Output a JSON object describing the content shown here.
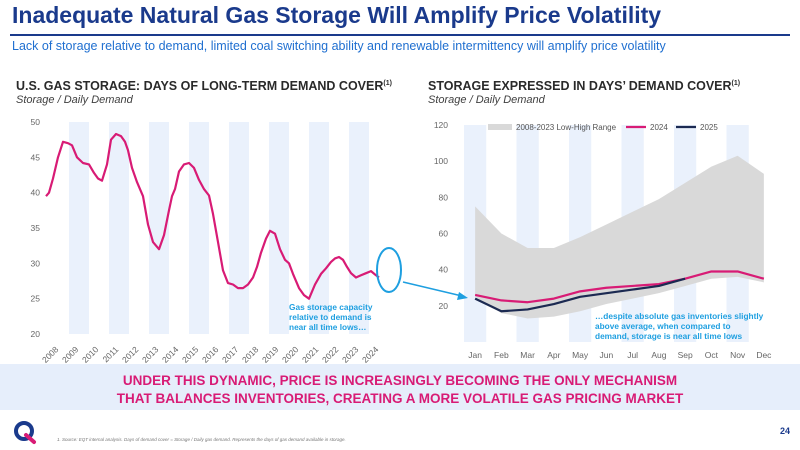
{
  "header": {
    "title": "Inadequate Natural Gas Storage Will Amplify Price Volatility",
    "subtitle": "Lack of storage relative to demand, limited coal switching ability and renewable intermittency will amplify price volatility"
  },
  "colors": {
    "brand_navy": "#1a3a8c",
    "accent_blue": "#1e9fe0",
    "magenta": "#d81b75",
    "band_gray": "#d9d9d9",
    "line_2025": "#1c2a52",
    "banner_bg": "#e6eefb"
  },
  "left_chart": {
    "title": "U.S. GAS STORAGE: DAYS OF LONG-TERM DEMAND COVER",
    "title_sup": "(1)",
    "subtitle": "Storage / Daily Demand",
    "callout": [
      "Gas storage capacity",
      "relative to demand is",
      "near all time lows…"
    ]
  },
  "right_chart": {
    "title": "STORAGE EXPRESSED IN DAYS’ DEMAND COVER",
    "title_sup": "(1)",
    "subtitle": "Storage / Daily Demand",
    "callout": [
      "…despite absolute gas inventories slightly",
      "above average, when compared to",
      "demand, storage is near all time lows"
    ]
  },
  "chart_data": [
    {
      "type": "line",
      "ylim": [
        20,
        50
      ],
      "yticks": [
        20,
        25,
        30,
        35,
        40,
        45,
        50
      ],
      "xlim": [
        2007.85,
        2024.6
      ],
      "xtick_labels": [
        "2008",
        "2009",
        "2010",
        "2011",
        "2012",
        "2013",
        "2014",
        "2015",
        "2016",
        "2017",
        "2018",
        "2019",
        "2020",
        "2021",
        "2022",
        "2023",
        "2024"
      ],
      "grid": "shaded year bands",
      "series": [
        {
          "color": "#d81b75",
          "x": [
            2007.85,
            2008.0,
            2008.2,
            2008.45,
            2008.7,
            2008.95,
            2009.15,
            2009.4,
            2009.7,
            2010.0,
            2010.25,
            2010.45,
            2010.65,
            2010.9,
            2011.1,
            2011.35,
            2011.6,
            2011.8,
            2011.95,
            2012.15,
            2012.4,
            2012.7,
            2012.95,
            2013.2,
            2013.5,
            2013.75,
            2014.0,
            2014.15,
            2014.3,
            2014.5,
            2014.75,
            2015.0,
            2015.25,
            2015.5,
            2015.75,
            2016.0,
            2016.2,
            2016.45,
            2016.7,
            2016.95,
            2017.2,
            2017.45,
            2017.7,
            2017.95,
            2018.2,
            2018.4,
            2018.6,
            2018.85,
            2019.05,
            2019.3,
            2019.55,
            2019.8,
            2020.0,
            2020.2,
            2020.5,
            2020.75,
            2021.0,
            2021.3,
            2021.6,
            2021.85,
            2022.1,
            2022.3,
            2022.5,
            2022.7,
            2022.9,
            2023.1,
            2023.35,
            2023.6,
            2023.85,
            2024.1,
            2024.35,
            2024.5
          ],
          "y": [
            39.5,
            40.0,
            42.0,
            45.0,
            47.2,
            47.0,
            46.7,
            45.0,
            44.2,
            44.0,
            42.8,
            42.0,
            41.7,
            44.0,
            47.5,
            48.3,
            48.0,
            47.2,
            46.0,
            43.5,
            41.5,
            39.5,
            35.5,
            33.0,
            32.0,
            34.0,
            37.5,
            39.5,
            40.5,
            43.0,
            44.0,
            44.2,
            43.5,
            41.8,
            40.5,
            39.6,
            37.0,
            33.0,
            29.0,
            27.2,
            27.0,
            26.5,
            26.5,
            27.0,
            28.0,
            29.5,
            31.5,
            33.5,
            34.6,
            34.2,
            32.0,
            30.5,
            30.0,
            28.5,
            26.5,
            25.5,
            25.0,
            27.0,
            28.5,
            29.3,
            30.2,
            30.7,
            30.9,
            30.5,
            29.5,
            28.6,
            28.0,
            28.3,
            28.6,
            28.9,
            28.3,
            28.0
          ]
        }
      ]
    },
    {
      "type": "area",
      "ylim": [
        0,
        120
      ],
      "yticks": [
        20,
        40,
        60,
        80,
        100,
        120
      ],
      "categories": [
        "Jan",
        "Feb",
        "Mar",
        "Apr",
        "May",
        "Jun",
        "Jul",
        "Aug",
        "Sep",
        "Oct",
        "Nov",
        "Dec"
      ],
      "legend": "top",
      "series": [
        {
          "name": "2008-2023 Low-High Range",
          "color": "#d9d9d9",
          "low": [
            25,
            16,
            13,
            14,
            17,
            21,
            24,
            27,
            31,
            35,
            36,
            33
          ],
          "high": [
            75,
            60,
            52,
            52,
            58,
            65,
            72,
            79,
            88,
            97,
            103,
            93
          ]
        },
        {
          "name": "2024",
          "color": "#d81b75",
          "values": [
            26,
            23,
            22,
            24,
            28,
            30,
            31,
            32,
            35,
            39,
            39,
            35
          ]
        },
        {
          "name": "2025",
          "color": "#1c2a52",
          "values": [
            24,
            17,
            18,
            21,
            25,
            27,
            29,
            31,
            35,
            null,
            null,
            null
          ]
        }
      ]
    }
  ],
  "banner": {
    "line1": "UNDER THIS DYNAMIC, PRICE IS INCREASINGLY BECOMING THE ONLY MECHANISM",
    "line2": "THAT BALANCES INVENTORIES, CREATING A MORE VOLATILE GAS PRICING MARKET"
  },
  "footer": {
    "footnote": "1. Source: EQT internal analysis. Days of demand cover = Storage / Daily gas demand. Represents the days of gas demand available in storage.",
    "page_number": "24",
    "logo_icon": "eqt-logo-icon"
  }
}
